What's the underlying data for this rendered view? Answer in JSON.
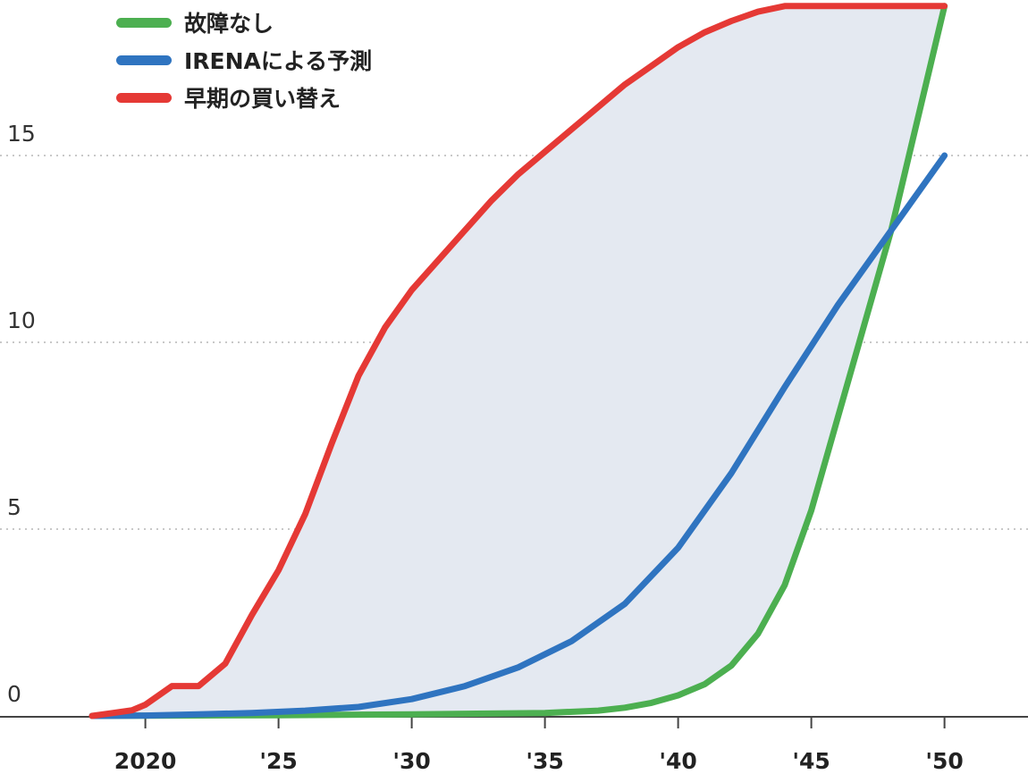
{
  "chart_data": {
    "type": "line",
    "title": "",
    "xlabel": "",
    "ylabel": "",
    "xlim": [
      2016.5,
      2053
    ],
    "ylim": [
      0,
      19
    ],
    "x_ticks": [
      {
        "value": 2020,
        "label": "2020"
      },
      {
        "value": 2025,
        "label": "'25"
      },
      {
        "value": 2030,
        "label": "'30"
      },
      {
        "value": 2035,
        "label": "'35"
      },
      {
        "value": 2040,
        "label": "'40"
      },
      {
        "value": 2045,
        "label": "'45"
      },
      {
        "value": 2050,
        "label": "'50"
      }
    ],
    "y_ticks": [
      {
        "value": 0,
        "label": "0"
      },
      {
        "value": 5,
        "label": "5"
      },
      {
        "value": 10,
        "label": "10"
      },
      {
        "value": 15,
        "label": "15"
      }
    ],
    "grid": "horizontal-dotted",
    "legend_position": "top-left",
    "shaded_region": {
      "between": [
        "早期の買い替え",
        "故障なし"
      ],
      "color": "#e4e9f1"
    },
    "series": [
      {
        "name": "故障なし",
        "color": "#4caf50",
        "points": [
          [
            2018,
            0
          ],
          [
            2025,
            0.02
          ],
          [
            2030,
            0.04
          ],
          [
            2035,
            0.08
          ],
          [
            2037,
            0.14
          ],
          [
            2038,
            0.22
          ],
          [
            2039,
            0.35
          ],
          [
            2040,
            0.55
          ],
          [
            2041,
            0.85
          ],
          [
            2042,
            1.35
          ],
          [
            2043,
            2.2
          ],
          [
            2044,
            3.5
          ],
          [
            2045,
            5.5
          ],
          [
            2046,
            8.0
          ],
          [
            2047,
            10.5
          ],
          [
            2048,
            13.0
          ],
          [
            2049,
            16.0
          ],
          [
            2050,
            19.0
          ]
        ]
      },
      {
        "name": "IRENAによる予測",
        "color": "#2f74c0",
        "points": [
          [
            2018,
            0
          ],
          [
            2020,
            0.01
          ],
          [
            2022,
            0.04
          ],
          [
            2024,
            0.08
          ],
          [
            2026,
            0.14
          ],
          [
            2028,
            0.24
          ],
          [
            2030,
            0.45
          ],
          [
            2032,
            0.8
          ],
          [
            2034,
            1.3
          ],
          [
            2036,
            2.0
          ],
          [
            2038,
            3.0
          ],
          [
            2040,
            4.5
          ],
          [
            2042,
            6.5
          ],
          [
            2044,
            8.8
          ],
          [
            2046,
            11.0
          ],
          [
            2048,
            13.0
          ],
          [
            2050,
            15.0
          ]
        ]
      },
      {
        "name": "早期の買い替え",
        "color": "#e53935",
        "points": [
          [
            2018,
            0
          ],
          [
            2019.5,
            0.15
          ],
          [
            2020,
            0.3
          ],
          [
            2021,
            0.8
          ],
          [
            2022,
            0.8
          ],
          [
            2023,
            1.4
          ],
          [
            2024,
            2.7
          ],
          [
            2025,
            3.9
          ],
          [
            2026,
            5.4
          ],
          [
            2027,
            7.3
          ],
          [
            2028,
            9.1
          ],
          [
            2029,
            10.4
          ],
          [
            2030,
            11.4
          ],
          [
            2031,
            12.2
          ],
          [
            2032,
            13.0
          ],
          [
            2033,
            13.8
          ],
          [
            2034,
            14.5
          ],
          [
            2035,
            15.1
          ],
          [
            2036,
            15.7
          ],
          [
            2037,
            16.3
          ],
          [
            2038,
            16.9
          ],
          [
            2039,
            17.4
          ],
          [
            2040,
            17.9
          ],
          [
            2041,
            18.3
          ],
          [
            2042,
            18.6
          ],
          [
            2043,
            18.85
          ],
          [
            2044,
            19.0
          ],
          [
            2046,
            19.0
          ],
          [
            2048,
            19.0
          ],
          [
            2050,
            19.0
          ]
        ]
      }
    ]
  }
}
